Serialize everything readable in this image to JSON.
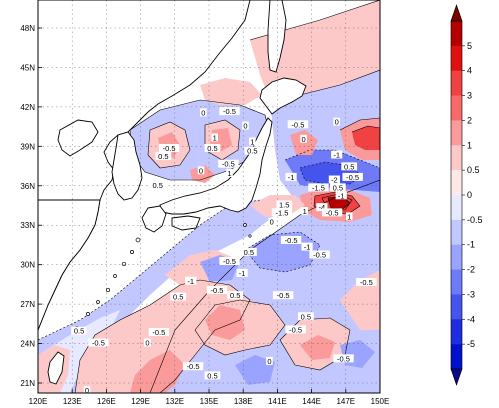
{
  "map": {
    "lon_ticks": [
      "120E",
      "123E",
      "126E",
      "129E",
      "132E",
      "135E",
      "138E",
      "141E",
      "144E",
      "147E",
      "150E"
    ],
    "lat_ticks": [
      "48N",
      "45N",
      "42N",
      "39N",
      "36N",
      "33N",
      "30N",
      "27N",
      "24N",
      "21N"
    ],
    "lon_range": [
      120,
      150
    ],
    "lat_range": [
      20,
      50
    ],
    "contour_labels": [
      {
        "text": "0.5",
        "lon": 131.0,
        "lat": 38.2
      },
      {
        "text": "0.5",
        "lon": 130.5,
        "lat": 36.0
      },
      {
        "text": "-0.5",
        "lon": 131.5,
        "lat": 38.8
      },
      {
        "text": "0",
        "lon": 134.5,
        "lat": 41.5
      },
      {
        "text": "-0.5",
        "lon": 136.8,
        "lat": 41.6
      },
      {
        "text": "0.5",
        "lon": 135.3,
        "lat": 38.8
      },
      {
        "text": "1",
        "lon": 135.5,
        "lat": 39.6
      },
      {
        "text": "0",
        "lon": 134.3,
        "lat": 37.1
      },
      {
        "text": "1",
        "lon": 136.8,
        "lat": 36.9
      },
      {
        "text": "-0.5",
        "lon": 136.7,
        "lat": 37.6
      },
      {
        "text": "0.5",
        "lon": 138.8,
        "lat": 38.6
      },
      {
        "text": "1",
        "lon": 138.8,
        "lat": 39.3
      },
      {
        "text": "0",
        "lon": 138.2,
        "lat": 40.5
      },
      {
        "text": "-0.5",
        "lon": 142.8,
        "lat": 40.6
      },
      {
        "text": "0",
        "lon": 146.2,
        "lat": 40.8
      },
      {
        "text": "0",
        "lon": 143.3,
        "lat": 39.5
      },
      {
        "text": "-1",
        "lon": 146.2,
        "lat": 38.3
      },
      {
        "text": "0.5",
        "lon": 147.3,
        "lat": 37.4
      },
      {
        "text": "-0.5",
        "lon": 147.6,
        "lat": 36.6
      },
      {
        "text": "-1",
        "lon": 142.2,
        "lat": 36.6
      },
      {
        "text": "-1.5",
        "lon": 144.6,
        "lat": 35.8
      },
      {
        "text": "-2",
        "lon": 146.0,
        "lat": 36.4
      },
      {
        "text": "0.5",
        "lon": 146.3,
        "lat": 35.8
      },
      {
        "text": "-1",
        "lon": 146.6,
        "lat": 35.2
      },
      {
        "text": "1.5",
        "lon": 141.6,
        "lat": 34.5
      },
      {
        "text": "-1.5",
        "lon": 141.4,
        "lat": 33.9
      },
      {
        "text": "1",
        "lon": 143.4,
        "lat": 34.0
      },
      {
        "text": "-4",
        "lon": 144.9,
        "lat": 34.3
      },
      {
        "text": "-0.5",
        "lon": 145.8,
        "lat": 33.9
      },
      {
        "text": "1",
        "lon": 147.3,
        "lat": 33.6
      },
      {
        "text": "0",
        "lon": 140.5,
        "lat": 33.2
      },
      {
        "text": "-0.5",
        "lon": 142.2,
        "lat": 31.8
      },
      {
        "text": "-1",
        "lon": 143.6,
        "lat": 31.3
      },
      {
        "text": "-0.5",
        "lon": 144.7,
        "lat": 30.7
      },
      {
        "text": "-0.5",
        "lon": 136.8,
        "lat": 30.2
      },
      {
        "text": "-1",
        "lon": 137.9,
        "lat": 29.3
      },
      {
        "text": "0.5",
        "lon": 138.5,
        "lat": 30.9
      },
      {
        "text": "-1",
        "lon": 133.4,
        "lat": 28.7
      },
      {
        "text": "-0.5",
        "lon": 135.7,
        "lat": 28.0
      },
      {
        "text": "0.5",
        "lon": 137.3,
        "lat": 27.6
      },
      {
        "text": "0.5",
        "lon": 132.3,
        "lat": 27.5
      },
      {
        "text": "-0.5",
        "lon": 148.8,
        "lat": 28.6
      },
      {
        "text": "-0.5",
        "lon": 141.5,
        "lat": 27.6
      },
      {
        "text": "0.5",
        "lon": 143.5,
        "lat": 26.0
      },
      {
        "text": "-0.5",
        "lon": 142.6,
        "lat": 25.0
      },
      {
        "text": "-0.5",
        "lon": 130.6,
        "lat": 24.8
      },
      {
        "text": "0",
        "lon": 129.6,
        "lat": 24.0
      },
      {
        "text": "0.5",
        "lon": 123.6,
        "lat": 24.9
      },
      {
        "text": "-0.5",
        "lon": 125.3,
        "lat": 24.0
      },
      {
        "text": "-0.5",
        "lon": 133.6,
        "lat": 22.2
      },
      {
        "text": "0.5",
        "lon": 135.3,
        "lat": 21.5
      },
      {
        "text": "-0.5",
        "lon": 146.8,
        "lat": 22.8
      },
      {
        "text": "0",
        "lon": 124.3,
        "lat": 20.4
      },
      {
        "text": "0",
        "lon": 140.3,
        "lat": 22.6
      }
    ]
  },
  "colorbar": {
    "labels": [
      "5",
      "4",
      "3",
      "2",
      "1",
      "0.5",
      "0",
      "-0.5",
      "-1",
      "-2",
      "-3",
      "-4",
      "-5"
    ],
    "colors": [
      "#b40000",
      "#e01010",
      "#f04242",
      "#f76a6a",
      "#fb9a9a",
      "#fdc8c8",
      "#ffe8e8",
      "#e6e9ff",
      "#c2c8ff",
      "#9aa3ff",
      "#6e7af8",
      "#4654ee",
      "#1f2de0",
      "#0010cc"
    ],
    "top_triangle_color": "#7a0000",
    "bottom_triangle_color": "#0a0a88"
  },
  "colors": {
    "land": "#ffffff",
    "ocean_base": "#ffffff",
    "coast": "#000000"
  }
}
